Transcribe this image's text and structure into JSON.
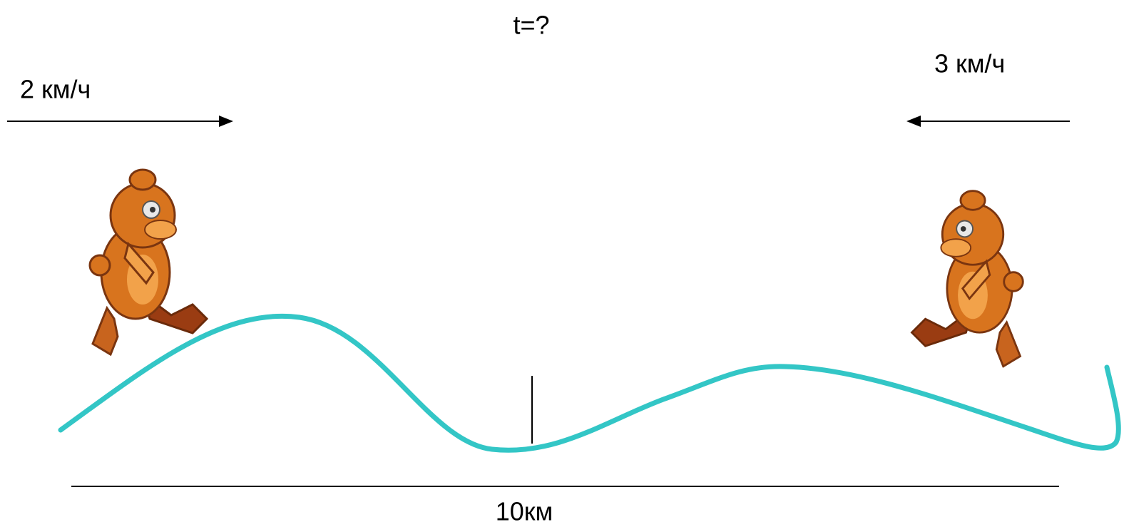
{
  "labels": {
    "time": "t=?",
    "left_speed": "2 км/ч",
    "right_speed": "3 км/ч",
    "distance": "10км"
  }
}
